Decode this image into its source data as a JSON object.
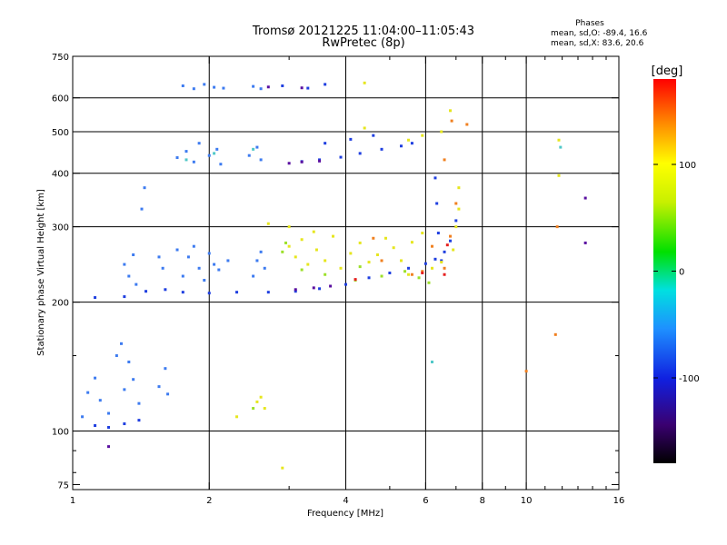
{
  "title": {
    "line1": "Tromsø 20121225 11:04:00–11:05:43",
    "line2": "RwPretec (8p)"
  },
  "phases": {
    "header": "Phases",
    "line_o": "mean, sd,O: -89.4, 16.6",
    "line_x": "mean, sd,X:  83.6, 20.6"
  },
  "colorbar": {
    "label": "[deg]",
    "ticks": [
      {
        "value": 100,
        "text": "100"
      },
      {
        "value": 0,
        "text": "0"
      },
      {
        "value": -100,
        "text": "-100"
      }
    ],
    "range": [
      -180,
      180
    ]
  },
  "chart_data": {
    "type": "scatter",
    "xlabel": "Frequency [MHz]",
    "ylabel": "Stationary phase Virtual Height [km]",
    "x_scale": "log",
    "y_scale": "log",
    "xlim": [
      1,
      16
    ],
    "ylim": [
      73,
      750
    ],
    "x_ticks": [
      1,
      2,
      4,
      6,
      8,
      10,
      16
    ],
    "y_ticks": [
      75,
      100,
      200,
      300,
      400,
      500,
      600,
      750
    ],
    "x_minor_ticks": [
      3,
      5,
      7,
      9,
      11,
      12,
      13,
      14,
      15
    ],
    "y_minor_ticks": [
      80,
      90,
      150
    ],
    "x_grid": [
      2,
      4,
      6,
      8,
      10
    ],
    "y_grid": [
      100,
      200,
      300,
      400,
      500,
      600
    ],
    "series": [
      {
        "color": "#3d7bf0",
        "points": [
          [
            1.7,
            435
          ],
          [
            1.78,
            450
          ],
          [
            1.85,
            425
          ],
          [
            1.9,
            470
          ],
          [
            2.0,
            440
          ],
          [
            2.08,
            455
          ],
          [
            2.12,
            420
          ],
          [
            2.45,
            440
          ],
          [
            2.55,
            460
          ],
          [
            2.6,
            430
          ],
          [
            1.75,
            640
          ],
          [
            1.85,
            630
          ],
          [
            1.95,
            645
          ],
          [
            2.05,
            635
          ],
          [
            2.15,
            632
          ],
          [
            2.5,
            638
          ],
          [
            2.6,
            630
          ],
          [
            1.55,
            255
          ],
          [
            1.58,
            240
          ],
          [
            1.7,
            265
          ],
          [
            1.75,
            230
          ],
          [
            1.8,
            255
          ],
          [
            1.85,
            270
          ],
          [
            1.9,
            240
          ],
          [
            1.95,
            225
          ],
          [
            2.0,
            260
          ],
          [
            2.05,
            245
          ],
          [
            2.1,
            238
          ],
          [
            2.2,
            250
          ],
          [
            2.5,
            230
          ],
          [
            2.55,
            250
          ],
          [
            2.6,
            262
          ],
          [
            2.65,
            240
          ],
          [
            1.3,
            245
          ],
          [
            1.33,
            230
          ],
          [
            1.36,
            258
          ],
          [
            1.38,
            220
          ],
          [
            1.05,
            108
          ],
          [
            1.08,
            123
          ],
          [
            1.12,
            133
          ],
          [
            1.15,
            118
          ],
          [
            1.2,
            110
          ],
          [
            1.25,
            150
          ],
          [
            1.28,
            160
          ],
          [
            1.3,
            125
          ],
          [
            1.33,
            145
          ],
          [
            1.36,
            132
          ],
          [
            1.4,
            116
          ],
          [
            1.55,
            127
          ],
          [
            1.6,
            140
          ],
          [
            1.62,
            122
          ],
          [
            1.42,
            330
          ],
          [
            1.44,
            370
          ]
        ]
      },
      {
        "color": "#1f3fe0",
        "points": [
          [
            1.12,
            205
          ],
          [
            1.3,
            206
          ],
          [
            1.45,
            212
          ],
          [
            1.6,
            214
          ],
          [
            1.75,
            211
          ],
          [
            2.0,
            210
          ],
          [
            2.3,
            211
          ],
          [
            2.7,
            211
          ],
          [
            3.1,
            212
          ],
          [
            3.5,
            215
          ],
          [
            4.0,
            220
          ],
          [
            4.5,
            228
          ],
          [
            5.0,
            234
          ],
          [
            5.5,
            240
          ],
          [
            6.0,
            246
          ],
          [
            6.3,
            252
          ],
          [
            6.6,
            262
          ],
          [
            6.8,
            278
          ],
          [
            7.0,
            310
          ],
          [
            1.12,
            103
          ],
          [
            1.2,
            102
          ],
          [
            1.3,
            104
          ],
          [
            1.4,
            106
          ],
          [
            3.2,
            426
          ],
          [
            3.5,
            430
          ],
          [
            3.9,
            436
          ],
          [
            4.3,
            445
          ],
          [
            4.8,
            455
          ],
          [
            5.3,
            463
          ],
          [
            5.6,
            470
          ],
          [
            6.3,
            390
          ],
          [
            6.35,
            340
          ],
          [
            6.4,
            290
          ],
          [
            6.5,
            250
          ],
          [
            3.6,
            470
          ],
          [
            4.1,
            480
          ],
          [
            4.6,
            490
          ],
          [
            2.9,
            640
          ],
          [
            3.3,
            632
          ],
          [
            3.6,
            645
          ]
        ]
      },
      {
        "color": "#e6e61e",
        "points": [
          [
            3.0,
            270
          ],
          [
            3.1,
            255
          ],
          [
            3.2,
            280
          ],
          [
            3.3,
            245
          ],
          [
            3.45,
            265
          ],
          [
            3.6,
            250
          ],
          [
            3.75,
            285
          ],
          [
            3.9,
            240
          ],
          [
            4.1,
            260
          ],
          [
            4.3,
            275
          ],
          [
            4.5,
            248
          ],
          [
            4.7,
            258
          ],
          [
            4.9,
            282
          ],
          [
            5.1,
            268
          ],
          [
            5.3,
            250
          ],
          [
            5.6,
            276
          ],
          [
            5.9,
            290
          ],
          [
            5.5,
            232
          ],
          [
            6.2,
            240
          ],
          [
            6.5,
            248
          ],
          [
            6.9,
            265
          ],
          [
            7.1,
            330
          ],
          [
            7.1,
            370
          ],
          [
            7.0,
            300
          ],
          [
            3.0,
            300
          ],
          [
            3.4,
            292
          ],
          [
            2.7,
            305
          ],
          [
            2.6,
            120
          ],
          [
            2.65,
            113
          ],
          [
            2.55,
            117
          ],
          [
            2.3,
            108
          ],
          [
            6.5,
            500
          ],
          [
            6.8,
            560
          ],
          [
            5.9,
            490
          ],
          [
            5.5,
            478
          ],
          [
            4.4,
            510
          ],
          [
            11.8,
            478
          ],
          [
            11.8,
            395
          ],
          [
            2.9,
            82
          ],
          [
            4.4,
            650
          ]
        ]
      },
      {
        "color": "#9ce02a",
        "points": [
          [
            3.2,
            238
          ],
          [
            3.6,
            232
          ],
          [
            4.2,
            225
          ],
          [
            4.8,
            230
          ],
          [
            5.4,
            236
          ],
          [
            5.8,
            228
          ],
          [
            6.1,
            222
          ],
          [
            2.9,
            262
          ],
          [
            2.95,
            275
          ],
          [
            2.5,
            113
          ],
          [
            4.3,
            242
          ]
        ]
      },
      {
        "color": "#f08020",
        "points": [
          [
            5.6,
            232
          ],
          [
            5.9,
            236
          ],
          [
            6.2,
            270
          ],
          [
            6.6,
            240
          ],
          [
            6.8,
            285
          ],
          [
            7.0,
            340
          ],
          [
            6.85,
            530
          ],
          [
            7.4,
            520
          ],
          [
            4.6,
            282
          ],
          [
            4.8,
            250
          ],
          [
            11.7,
            300
          ],
          [
            11.6,
            168
          ],
          [
            10.0,
            138
          ],
          [
            6.6,
            430
          ]
        ]
      },
      {
        "color": "#e62020",
        "points": [
          [
            5.9,
            234
          ],
          [
            6.6,
            232
          ],
          [
            6.7,
            272
          ],
          [
            4.2,
            226
          ]
        ]
      },
      {
        "color": "#50c8c8",
        "points": [
          [
            1.78,
            430
          ],
          [
            2.05,
            445
          ],
          [
            2.5,
            455
          ],
          [
            6.2,
            145
          ],
          [
            11.9,
            460
          ]
        ]
      },
      {
        "color": "#5a10a0",
        "points": [
          [
            3.1,
            214
          ],
          [
            3.4,
            216
          ],
          [
            3.7,
            218
          ],
          [
            3.0,
            422
          ],
          [
            3.2,
            425
          ],
          [
            3.5,
            427
          ],
          [
            2.7,
            636
          ],
          [
            3.2,
            633
          ],
          [
            1.2,
            92
          ],
          [
            13.5,
            350
          ],
          [
            13.5,
            275
          ]
        ]
      }
    ]
  }
}
